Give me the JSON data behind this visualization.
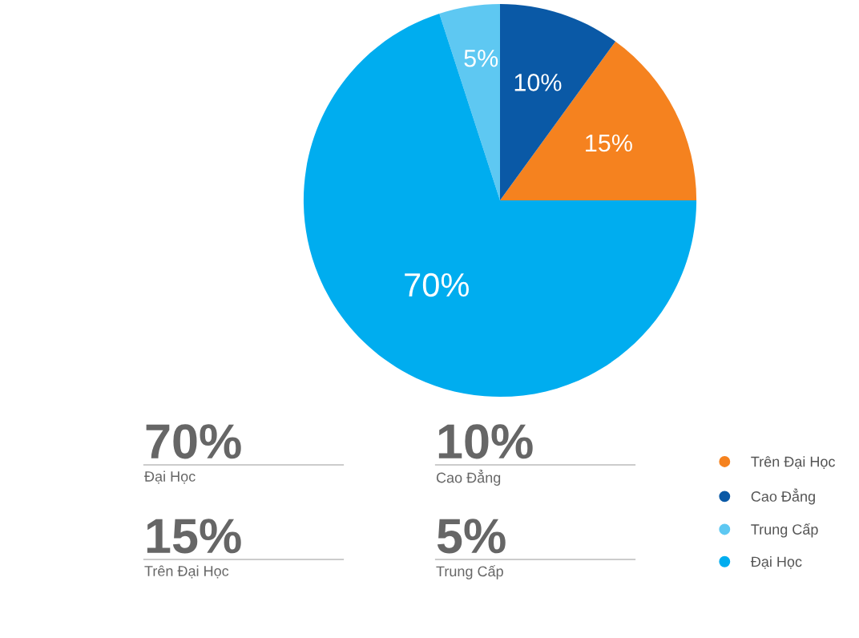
{
  "chart_data": {
    "type": "pie",
    "categories": [
      "Trên Đại Học",
      "Cao Đẳng",
      "Trung Cấp",
      "Đại Học"
    ],
    "values": [
      15,
      10,
      5,
      70
    ],
    "colors": [
      "#f5821f",
      "#0a59a6",
      "#5ec8f2",
      "#00adef"
    ],
    "value_labels": [
      "15%",
      "10%",
      "5%",
      "70%"
    ],
    "legend": "bottom right",
    "annotations": [
      "70%",
      "Đại Học",
      "10%",
      "Cao Đẳng",
      "15%",
      "Trên Đại Học",
      "5%",
      "Trung Cấp"
    ]
  }
}
